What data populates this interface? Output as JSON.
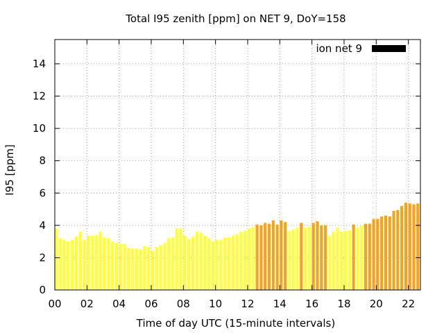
{
  "chart_data": {
    "type": "bar",
    "title": "Total I95 zenith [ppm] on NET 9, DoY=158",
    "xlabel": "Time of day UTC (15-minute intervals)",
    "ylabel": "I95 [ppm]",
    "legend": {
      "label": "ion net 9",
      "color": "#000000",
      "placement": "top-right"
    },
    "grid": true,
    "xlim": [
      0,
      22.75
    ],
    "ylim": [
      0,
      15.5
    ],
    "x_ticks": [
      {
        "value": 0,
        "label": "00"
      },
      {
        "value": 2,
        "label": "02"
      },
      {
        "value": 4,
        "label": "04"
      },
      {
        "value": 6,
        "label": "06"
      },
      {
        "value": 8,
        "label": "08"
      },
      {
        "value": 10,
        "label": "10"
      },
      {
        "value": 12,
        "label": "12"
      },
      {
        "value": 14,
        "label": "14"
      },
      {
        "value": 16,
        "label": "16"
      },
      {
        "value": 18,
        "label": "18"
      },
      {
        "value": 20,
        "label": "20"
      },
      {
        "value": 22,
        "label": "22"
      }
    ],
    "y_ticks": [
      {
        "value": 0,
        "label": "0"
      },
      {
        "value": 2,
        "label": "2"
      },
      {
        "value": 4,
        "label": "4"
      },
      {
        "value": 6,
        "label": "6"
      },
      {
        "value": 8,
        "label": "8"
      },
      {
        "value": 10,
        "label": "10"
      },
      {
        "value": 12,
        "label": "12"
      },
      {
        "value": 14,
        "label": "14"
      }
    ],
    "interval_hours": 0.25,
    "colors": {
      "low": "#ffff33",
      "high": "#f5a31a",
      "legend": "#000000"
    },
    "color_rule": "high when value >= 4",
    "values": [
      3.8,
      3.2,
      3.1,
      3.0,
      3.1,
      3.3,
      3.6,
      3.1,
      3.35,
      3.35,
      3.4,
      3.6,
      3.25,
      3.2,
      3.0,
      2.9,
      2.85,
      2.85,
      2.6,
      2.55,
      2.55,
      2.5,
      2.7,
      2.65,
      2.4,
      2.65,
      2.75,
      2.9,
      3.2,
      3.25,
      3.8,
      3.8,
      3.35,
      3.15,
      3.3,
      3.6,
      3.55,
      3.35,
      3.2,
      3.0,
      3.1,
      3.1,
      3.25,
      3.25,
      3.35,
      3.45,
      3.6,
      3.65,
      3.8,
      3.9,
      4.05,
      4.0,
      4.15,
      4.1,
      4.3,
      4.05,
      4.3,
      4.2,
      3.65,
      3.75,
      3.85,
      4.15,
      3.85,
      3.9,
      4.15,
      4.25,
      4.0,
      4.0,
      3.35,
      3.6,
      3.85,
      3.6,
      3.65,
      3.7,
      4.05,
      3.85,
      3.95,
      4.1,
      4.1,
      4.4,
      4.4,
      4.55,
      4.6,
      4.55,
      4.9,
      4.95,
      5.2,
      5.4,
      5.35,
      5.3,
      5.35
    ]
  }
}
